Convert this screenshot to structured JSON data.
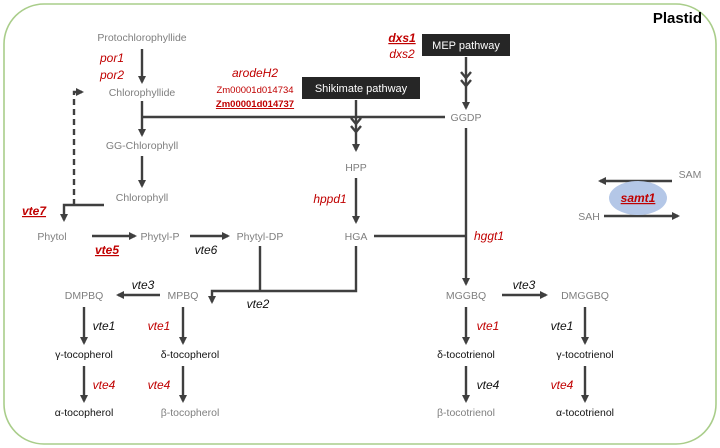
{
  "title": "Plastid",
  "pathways": {
    "mep": "MEP pathway",
    "shikimate": "Shikimate pathway"
  },
  "metabolites": {
    "protochlorophyllide": "Protochlorophyllide",
    "chlorophyllide": "Chlorophyllide",
    "gg_chlorophyll": "GG-Chlorophyll",
    "chlorophyll": "Chlorophyll",
    "phytol": "Phytol",
    "phytyl_p": "Phytyl-P",
    "phytyl_dp": "Phytyl-DP",
    "ggdp": "GGDP",
    "hpp": "HPP",
    "hga": "HGA",
    "dmpbq": "DMPBQ",
    "mpbq": "MPBQ",
    "mggbq": "MGGBQ",
    "dmggbq": "DMGGBQ",
    "gamma_tocopherol": "γ-tocopherol",
    "delta_tocopherol": "δ-tocopherol",
    "alpha_tocopherol": "α-tocopherol",
    "beta_tocopherol": "β-tocopherol",
    "delta_tocotrienol": "δ-tocotrienol",
    "gamma_tocotrienol": "γ-tocotrienol",
    "beta_tocotrienol": "β-tocotrienol",
    "alpha_tocotrienol": "α-tocotrienol",
    "sam": "SAM",
    "sah": "SAH"
  },
  "genes": {
    "por1": "por1",
    "por2": "por2",
    "arodeh2": "arodeH2",
    "zm_734": "Zm00001d014734",
    "zm_737": "Zm00001d014737",
    "dxs1": "dxs1",
    "dxs2": "dxs2",
    "vte7": "vte7",
    "vte5": "vte5",
    "vte6": "vte6",
    "hppd1": "hppd1",
    "hggt1": "hggt1",
    "vte2": "vte2",
    "vte3": "vte3",
    "vte1": "vte1",
    "vte4": "vte4",
    "samt1": "samt1"
  },
  "colors": {
    "candidate_gene": "#c00000",
    "known_gene": "#111111",
    "membrane": "#a9cd8a",
    "transporter": "#b4c7e7",
    "pathway_box": "#262626"
  }
}
